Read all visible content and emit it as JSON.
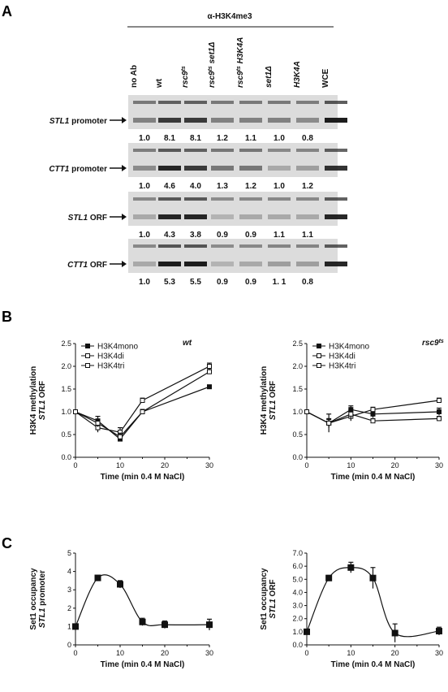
{
  "panels": {
    "A": {
      "letter": "A",
      "antibody": "α-H3K4me3",
      "lanes": [
        "no Ab",
        "wt",
        "rsc9ts",
        "rsc9ts set1Δ",
        "rsc9ts H3K4A",
        "set1Δ",
        "H3K4A",
        "WCE"
      ],
      "gels": [
        {
          "label_gene": "STL1",
          "label_suffix": " promoter",
          "quant": [
            "1.0",
            "8.1",
            "8.1",
            "1.2",
            "1.1",
            "1.0",
            "0.8"
          ],
          "band_intensity": [
            0.45,
            0.8,
            0.8,
            0.45,
            0.45,
            0.45,
            0.4,
            0.95
          ]
        },
        {
          "label_gene": "CTT1",
          "label_suffix": " promoter",
          "quant": [
            "1.0",
            "4.6",
            "4.0",
            "1.3",
            "1.2",
            "1.0",
            "1.2"
          ],
          "band_intensity": [
            0.4,
            0.9,
            0.8,
            0.5,
            0.5,
            0.25,
            0.3,
            0.85
          ]
        },
        {
          "label_gene": "STL1",
          "label_suffix": " ORF",
          "quant": [
            "1.0",
            "4.3",
            "3.8",
            "0.9",
            "0.9",
            "1.1",
            "1.1"
          ],
          "band_intensity": [
            0.25,
            0.9,
            0.9,
            0.2,
            0.25,
            0.25,
            0.25,
            0.9
          ]
        },
        {
          "label_gene": "CTT1",
          "label_suffix": " ORF",
          "quant": [
            "1.0",
            "5.3",
            "5.5",
            "0.9",
            "0.9",
            "1.  1",
            "0.8"
          ],
          "band_intensity": [
            0.25,
            0.95,
            0.95,
            0.2,
            0.25,
            0.3,
            0.3,
            0.9
          ]
        }
      ]
    },
    "B": {
      "letter": "B"
    },
    "C": {
      "letter": "C"
    }
  },
  "chart_data": [
    {
      "type": "line",
      "title": "wt",
      "xlabel": "Time (min 0.4 M NaCl)",
      "ylabel": "H3K4 methylation",
      "ylabel2": "STL1 ORF",
      "xlim": [
        0,
        30
      ],
      "ylim": [
        0,
        2.5
      ],
      "xticks": [
        "0",
        "10",
        "20",
        "30"
      ],
      "yticks": [
        "0.0",
        "0.5",
        "1.0",
        "1.5",
        "2.0",
        "2.5"
      ],
      "legend": "top-left",
      "x": [
        0,
        5,
        10,
        15,
        30
      ],
      "series": [
        {
          "name": "H3K4mono",
          "marker": "filled",
          "values": [
            1.0,
            0.8,
            0.4,
            1.0,
            1.55
          ],
          "errors": [
            0,
            0.1,
            0.05,
            0.05,
            0.03
          ]
        },
        {
          "name": "H3K4di",
          "marker": "open",
          "values": [
            1.0,
            0.65,
            0.55,
            1.25,
            2.0
          ],
          "errors": [
            0,
            0.1,
            0.1,
            0.05,
            0.07
          ]
        },
        {
          "name": "H3K4tri",
          "marker": "open",
          "values": [
            1.0,
            0.75,
            0.45,
            1.0,
            1.88
          ],
          "errors": [
            0,
            0.08,
            0.08,
            0.05,
            0.05
          ]
        }
      ]
    },
    {
      "type": "line",
      "title": "rsc9ts",
      "xlabel": "Time (min 0.4 M NaCl)",
      "ylabel": "H3K4 methylation",
      "ylabel2": "STL1 ORF",
      "xlim": [
        0,
        30
      ],
      "ylim": [
        0,
        2.5
      ],
      "xticks": [
        "0",
        "10",
        "20",
        "30"
      ],
      "yticks": [
        "0.0",
        "0.5",
        "1.0",
        "1.5",
        "2.0",
        "2.5"
      ],
      "legend": "top-left",
      "x": [
        0,
        5,
        10,
        15,
        30
      ],
      "series": [
        {
          "name": "H3K4mono",
          "marker": "filled",
          "values": [
            1.0,
            0.75,
            1.05,
            0.95,
            1.0
          ],
          "errors": [
            0,
            0.08,
            0.08,
            0.08,
            0.08
          ]
        },
        {
          "name": "H3K4di",
          "marker": "open",
          "values": [
            1.0,
            0.75,
            0.9,
            1.05,
            1.25
          ],
          "errors": [
            0,
            0.2,
            0.1,
            0.05,
            0.05
          ]
        },
        {
          "name": "H3K4tri",
          "marker": "open",
          "values": [
            1.0,
            0.75,
            0.95,
            0.8,
            0.85
          ],
          "errors": [
            0,
            0.1,
            0.1,
            0.05,
            0.05
          ]
        }
      ]
    },
    {
      "type": "line",
      "title": "",
      "xlabel": "Time (min 0.4 M NaCl)",
      "ylabel": "Set1 occupancy",
      "ylabel2": "STL1 promoter",
      "xlim": [
        0,
        30
      ],
      "ylim": [
        0,
        5
      ],
      "xticks": [
        "0",
        "10",
        "20",
        "30"
      ],
      "yticks": [
        "0",
        "1",
        "2",
        "3",
        "4",
        "5"
      ],
      "x": [
        0,
        5,
        10,
        15,
        20,
        30
      ],
      "series": [
        {
          "marker": "filled",
          "values": [
            1.0,
            3.65,
            3.3,
            1.25,
            1.1,
            1.1
          ],
          "errors": [
            0,
            0.05,
            0.2,
            0.2,
            0.2,
            0.3
          ]
        }
      ]
    },
    {
      "type": "line",
      "title": "",
      "xlabel": "Time (min 0.4 M NaCl)",
      "ylabel": "Set1 occupancy",
      "ylabel2": "STL1 ORF",
      "xlim": [
        0,
        30
      ],
      "ylim": [
        0,
        7
      ],
      "xticks": [
        "0",
        "10",
        "20",
        "30"
      ],
      "yticks": [
        "0.0",
        "1.0",
        "2.0",
        "3.0",
        "4.0",
        "5.0",
        "6.0",
        "7.0"
      ],
      "x": [
        0,
        5,
        10,
        15,
        20,
        30
      ],
      "series": [
        {
          "marker": "filled",
          "values": [
            1.0,
            5.1,
            5.9,
            5.1,
            0.9,
            1.05
          ],
          "errors": [
            0,
            0.2,
            0.4,
            0.8,
            0.7,
            0.3
          ]
        }
      ]
    }
  ]
}
